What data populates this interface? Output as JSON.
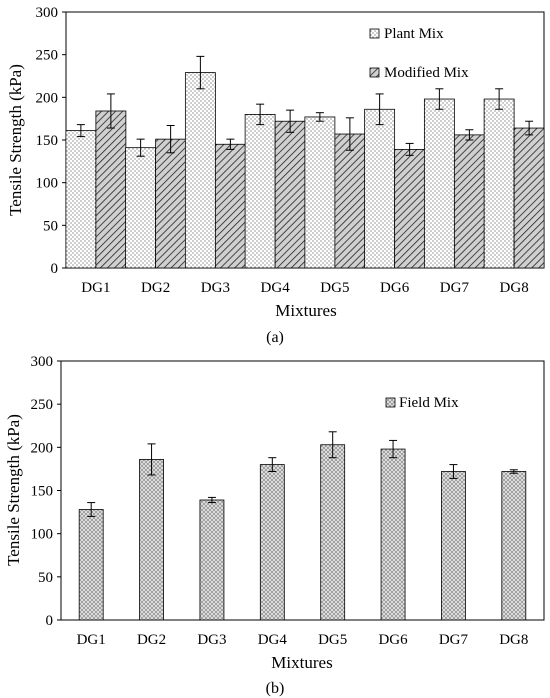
{
  "chart_data": [
    {
      "type": "bar",
      "panel_label": "(a)",
      "xlabel": "Mixtures",
      "ylabel": "Tensile Strength (kPa)",
      "ylim": [
        0,
        300
      ],
      "yticks": [
        0,
        50,
        100,
        150,
        200,
        250,
        300
      ],
      "grid": false,
      "legend_position": "top-right",
      "categories": [
        "DG1",
        "DG2",
        "DG3",
        "DG4",
        "DG5",
        "DG6",
        "DG7",
        "DG8"
      ],
      "series": [
        {
          "name": "Plant Mix",
          "pattern": "dots",
          "values": [
            161,
            141,
            229,
            180,
            177,
            186,
            198,
            198
          ],
          "errors": [
            7,
            10,
            19,
            12,
            5,
            18,
            12,
            12
          ]
        },
        {
          "name": "Modified Mix",
          "pattern": "hatch",
          "values": [
            184,
            151,
            145,
            172,
            157,
            139,
            156,
            164
          ],
          "errors": [
            20,
            16,
            6,
            13,
            19,
            7,
            6,
            8
          ]
        }
      ]
    },
    {
      "type": "bar",
      "panel_label": "(b)",
      "xlabel": "Mixtures",
      "ylabel": "Tensile Strength (kPa)",
      "ylim": [
        0,
        300
      ],
      "yticks": [
        0,
        50,
        100,
        150,
        200,
        250,
        300
      ],
      "grid": false,
      "legend_position": "top-right",
      "categories": [
        "DG1",
        "DG2",
        "DG3",
        "DG4",
        "DG5",
        "DG6",
        "DG7",
        "DG8"
      ],
      "series": [
        {
          "name": "Field Mix",
          "pattern": "crosshatch",
          "values": [
            128,
            186,
            139,
            180,
            203,
            198,
            172,
            172
          ],
          "errors": [
            8,
            18,
            3,
            8,
            15,
            10,
            8,
            2
          ]
        }
      ]
    }
  ]
}
